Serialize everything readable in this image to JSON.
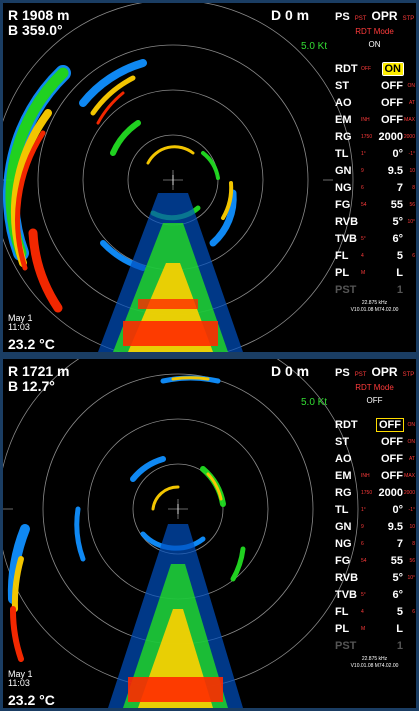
{
  "screens": [
    {
      "range": "R 1908 m",
      "bearing": "B 359.0°",
      "depth": "D 0 m",
      "speed": "5.0 Kt",
      "date": "May 1",
      "time": "11:03",
      "temperature": "23.2 °C",
      "ps": {
        "label": "PS",
        "left": "PST",
        "main": "OPR",
        "right": "STP"
      },
      "mode_title": "RDT Mode",
      "mode_value": "ON",
      "rows": [
        {
          "key": "RDT",
          "left": "OFF",
          "value": "ON",
          "right": ""
        },
        {
          "key": "ST",
          "left": "",
          "value": "OFF",
          "right": "ON"
        },
        {
          "key": "AO",
          "left": "",
          "value": "OFF",
          "right": "AT"
        },
        {
          "key": "EM",
          "left": "INH",
          "value": "OFF",
          "right": "MAX"
        },
        {
          "key": "RG",
          "left": "1750",
          "value": "2000",
          "right": "2000"
        },
        {
          "key": "TL",
          "left": "1°",
          "value": "0°",
          "right": "-1°"
        },
        {
          "key": "GN",
          "left": "9",
          "value": "9.5",
          "right": "10"
        },
        {
          "key": "NG",
          "left": "6",
          "value": "7",
          "right": "8"
        },
        {
          "key": "FG",
          "left": "54",
          "value": "55",
          "right": "56"
        },
        {
          "key": "RVB",
          "left": "",
          "value": "5°",
          "right": "10°"
        },
        {
          "key": "TVB",
          "left": "5°",
          "value": "6°",
          "right": ""
        },
        {
          "key": "FL",
          "left": "4",
          "value": "5",
          "right": "6"
        },
        {
          "key": "PL",
          "left": "M",
          "value": "L",
          "right": ""
        },
        {
          "key": "PST",
          "left": "",
          "value": "1",
          "right": ""
        }
      ],
      "freq": "22.875  kHz",
      "version": "V10.01.08  M74.02.00"
    },
    {
      "range": "R 1721 m",
      "bearing": "B 12.7°",
      "depth": "D 0 m",
      "speed": "5.0 Kt",
      "date": "May 1",
      "time": "11:03",
      "temperature": "23.2 °C",
      "ps": {
        "label": "PS",
        "left": "PST",
        "main": "OPR",
        "right": "STP"
      },
      "mode_title": "RDT Mode",
      "mode_value": "OFF",
      "rows": [
        {
          "key": "RDT",
          "left": "",
          "value": "OFF",
          "right": "ON"
        },
        {
          "key": "ST",
          "left": "",
          "value": "OFF",
          "right": "ON"
        },
        {
          "key": "AO",
          "left": "",
          "value": "OFF",
          "right": "AT"
        },
        {
          "key": "EM",
          "left": "INH",
          "value": "OFF",
          "right": "MAX"
        },
        {
          "key": "RG",
          "left": "1750",
          "value": "2000",
          "right": "2000"
        },
        {
          "key": "TL",
          "left": "1°",
          "value": "0°",
          "right": "-1°"
        },
        {
          "key": "GN",
          "left": "9",
          "value": "9.5",
          "right": "10"
        },
        {
          "key": "NG",
          "left": "6",
          "value": "7",
          "right": "8"
        },
        {
          "key": "FG",
          "left": "54",
          "value": "55",
          "right": "56"
        },
        {
          "key": "RVB",
          "left": "",
          "value": "5°",
          "right": "10°"
        },
        {
          "key": "TVB",
          "left": "5°",
          "value": "6°",
          "right": ""
        },
        {
          "key": "FL",
          "left": "4",
          "value": "5",
          "right": "6"
        },
        {
          "key": "PL",
          "left": "M",
          "value": "L",
          "right": ""
        },
        {
          "key": "PST",
          "left": "",
          "value": "1",
          "right": ""
        }
      ],
      "freq": "22.875  kHz",
      "version": "V10.01.08  M74.02.00"
    }
  ],
  "colors": {
    "frame": "#1a3d63",
    "echo_hot": "#ff2a00",
    "echo_warm": "#ffd000",
    "echo_mid": "#22dd22",
    "echo_cool": "#1090ff",
    "highlight": "#ffee00",
    "label_red": "#ff3b3b",
    "speed": "#33dd33"
  },
  "icons": {
    "center": "ship-marker-icon"
  }
}
